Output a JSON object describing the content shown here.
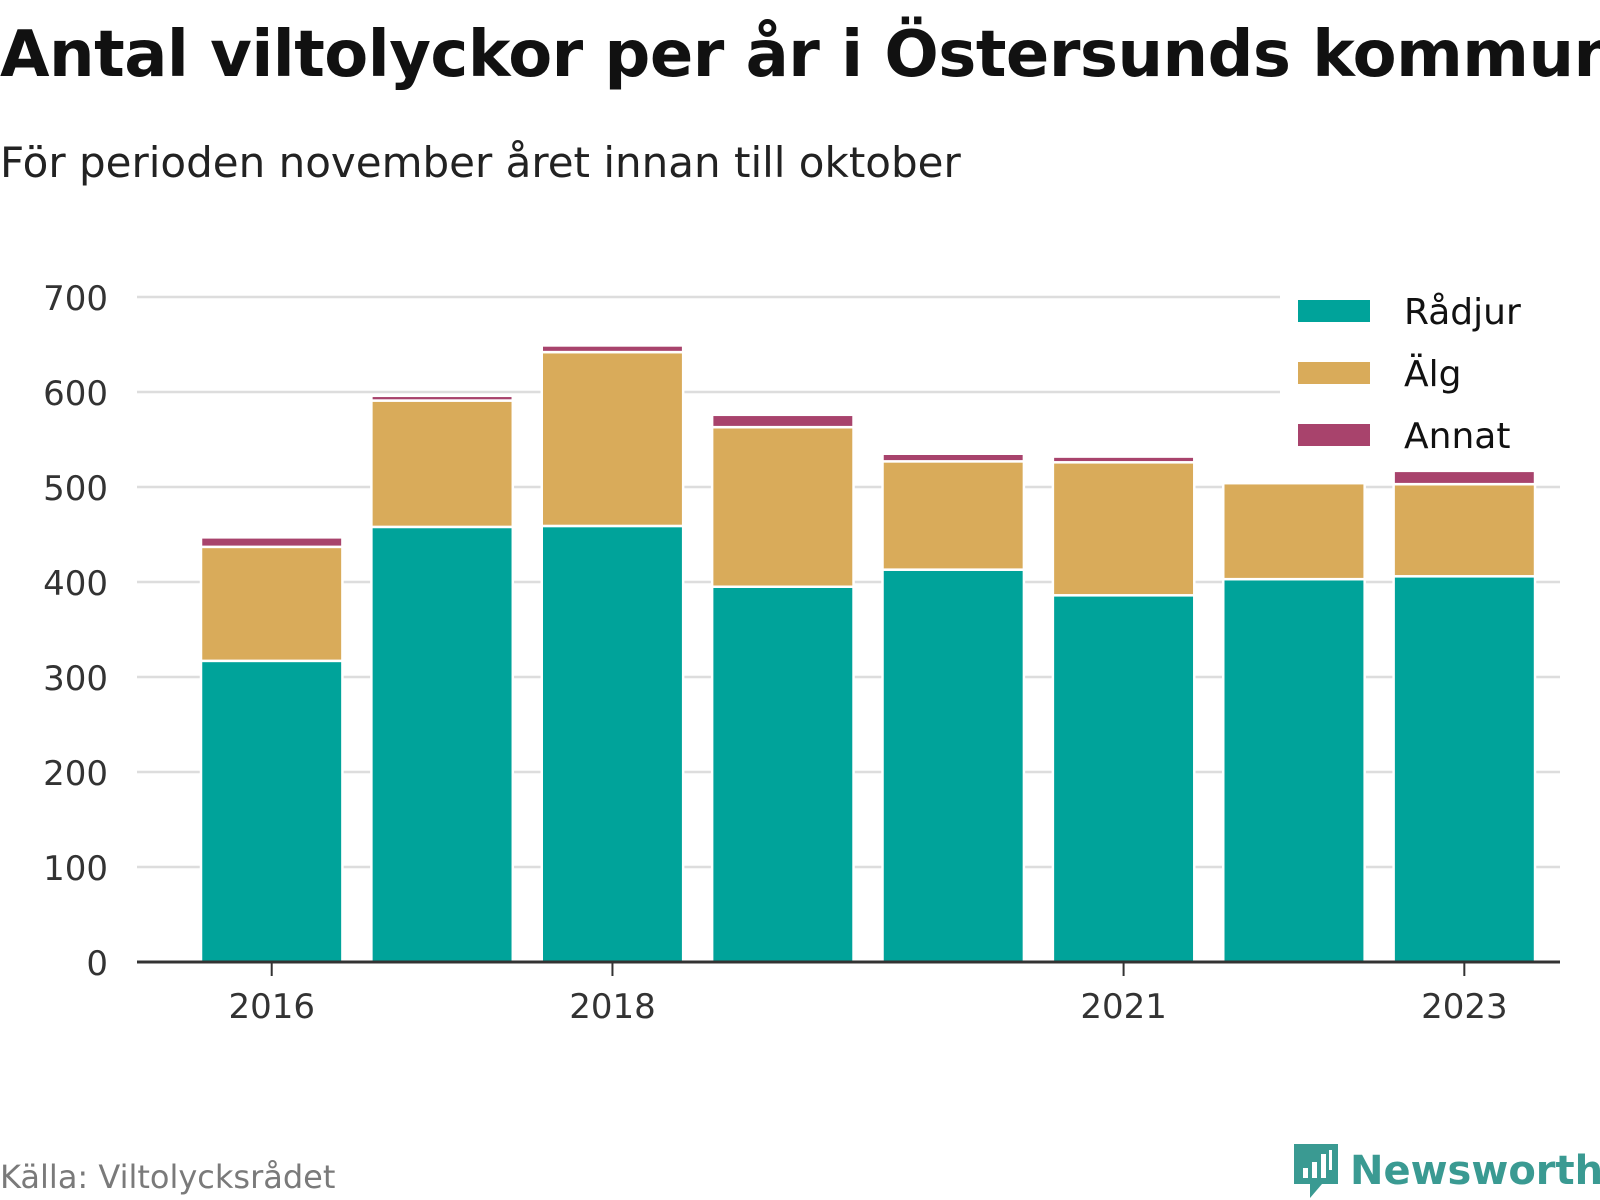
{
  "title": "Antal viltolyckor per år i Östersunds kommun",
  "subtitle": "För perioden november året innan till oktober",
  "source": "Källa: Viltolycksrådet",
  "brand": {
    "name": "Newsworthy",
    "icon": "newsworthy-logo-icon",
    "color": "#3a9a92"
  },
  "chart_data": {
    "type": "bar",
    "stacked": true,
    "categories": [
      "2016",
      "2017",
      "2018",
      "2019",
      "2020",
      "2021",
      "2022",
      "2023"
    ],
    "x_tick_labels": [
      "2016",
      "",
      "2018",
      "",
      "",
      "2021",
      "",
      "2023"
    ],
    "series": [
      {
        "name": "Rådjur",
        "color": "#00a39a",
        "values": [
          317,
          458,
          459,
          395,
          413,
          386,
          403,
          406
        ]
      },
      {
        "name": "Älg",
        "color": "#d9ab5a",
        "values": [
          120,
          133,
          183,
          168,
          114,
          140,
          101,
          97
        ]
      },
      {
        "name": "Annat",
        "color": "#a8436c",
        "values": [
          10,
          5,
          7,
          13,
          8,
          6,
          0,
          14
        ]
      }
    ],
    "y_ticks": [
      0,
      100,
      200,
      300,
      400,
      500,
      600,
      700
    ],
    "ylim": [
      0,
      700
    ],
    "grid": true,
    "legend_position": "top-right"
  }
}
